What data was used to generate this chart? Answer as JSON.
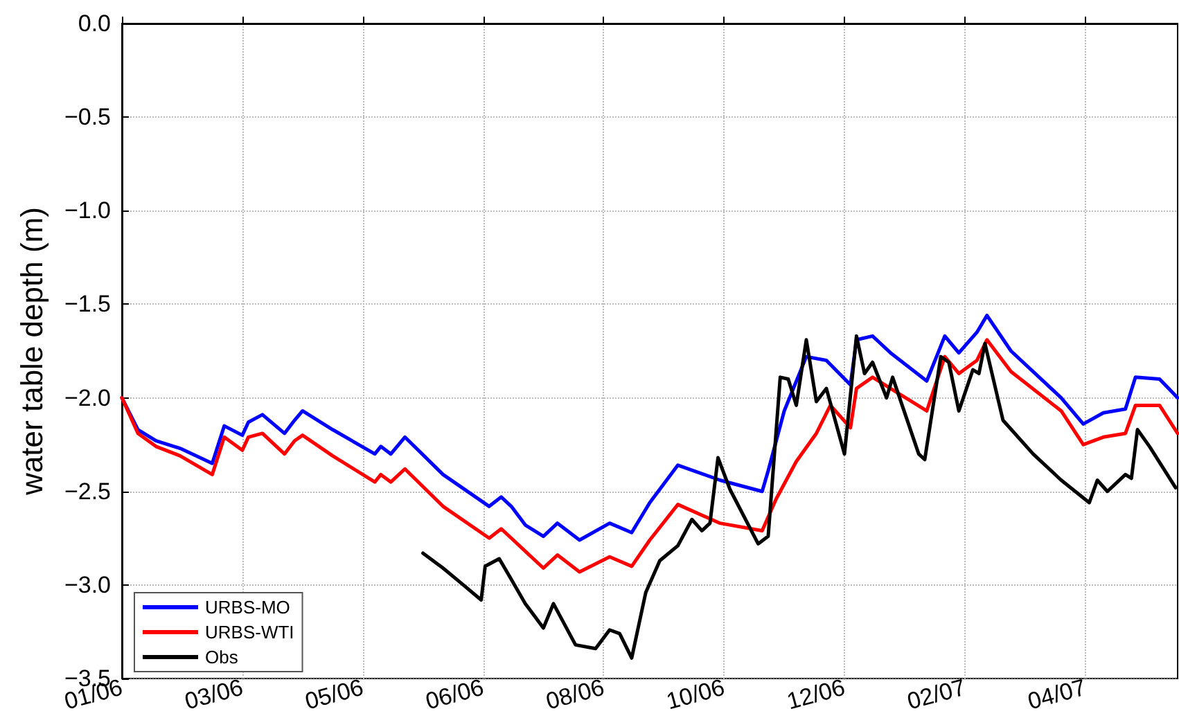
{
  "chart_data": {
    "type": "line",
    "ylabel": "water table depth (m)",
    "xlim": [
      "2006-01-01",
      "2007-06-11"
    ],
    "xticks": [
      {
        "value": "2006-01-01",
        "label": "01/06"
      },
      {
        "value": "2006-03-02",
        "label": "03/06"
      },
      {
        "value": "2006-05-01",
        "label": "05/06"
      },
      {
        "value": "2006-06-30",
        "label": "06/06"
      },
      {
        "value": "2006-08-29",
        "label": "08/06"
      },
      {
        "value": "2006-10-28",
        "label": "10/06"
      },
      {
        "value": "2006-12-27",
        "label": "12/06"
      },
      {
        "value": "2007-02-25",
        "label": "02/07"
      },
      {
        "value": "2007-04-26",
        "label": "04/07"
      }
    ],
    "ylim": [
      -3.5,
      0
    ],
    "yticks": [
      {
        "value": -3.5,
        "label": "−3.5"
      },
      {
        "value": -3,
        "label": "−3.0"
      },
      {
        "value": -2.5,
        "label": "−2.5"
      },
      {
        "value": -2,
        "label": "−2.0"
      },
      {
        "value": -1.5,
        "label": "−1.5"
      },
      {
        "value": -1,
        "label": "−1.0"
      },
      {
        "value": -0.5,
        "label": "−0.5"
      },
      {
        "value": 0,
        "label": "0.0"
      }
    ],
    "grid": true,
    "legend": "bottom left",
    "marker": "none",
    "line_style": "solid",
    "series": [
      {
        "name": "URBS-MO",
        "color": "#0000ff",
        "x": [
          "2006-01-01",
          "2006-01-09",
          "2006-01-18",
          "2006-01-30",
          "2006-02-15",
          "2006-02-21",
          "2006-03-02",
          "2006-03-05",
          "2006-03-12",
          "2006-03-23",
          "2006-03-28",
          "2006-04-01",
          "2006-04-16",
          "2006-05-07",
          "2006-05-10",
          "2006-05-15",
          "2006-05-22",
          "2006-06-10",
          "2006-07-03",
          "2006-07-09",
          "2006-07-14",
          "2006-07-21",
          "2006-07-30",
          "2006-08-06",
          "2006-08-17",
          "2006-09-01",
          "2006-09-12",
          "2006-09-21",
          "2006-10-05",
          "2006-10-26",
          "2006-11-16",
          "2006-11-19",
          "2006-11-27",
          "2006-12-08",
          "2006-12-18",
          "2006-12-30",
          "2007-01-02",
          "2007-01-10",
          "2007-01-19",
          "2007-02-06",
          "2007-02-15",
          "2007-02-22",
          "2007-03-03",
          "2007-03-08",
          "2007-03-20",
          "2007-04-14",
          "2007-04-25",
          "2007-05-05",
          "2007-05-16",
          "2007-05-21",
          "2007-06-02",
          "2007-06-11"
        ],
        "values": [
          -2.0,
          -2.17,
          -2.23,
          -2.27,
          -2.35,
          -2.15,
          -2.2,
          -2.13,
          -2.09,
          -2.19,
          -2.12,
          -2.07,
          -2.17,
          -2.3,
          -2.26,
          -2.3,
          -2.21,
          -2.41,
          -2.58,
          -2.53,
          -2.58,
          -2.68,
          -2.74,
          -2.67,
          -2.76,
          -2.67,
          -2.72,
          -2.56,
          -2.36,
          -2.44,
          -2.5,
          -2.39,
          -2.07,
          -1.78,
          -1.8,
          -1.93,
          -1.69,
          -1.67,
          -1.76,
          -1.91,
          -1.67,
          -1.76,
          -1.65,
          -1.56,
          -1.75,
          -2.0,
          -2.14,
          -2.08,
          -2.06,
          -1.89,
          -1.9,
          -2.0
        ]
      },
      {
        "name": "URBS-WTI",
        "color": "#ff0000",
        "x": [
          "2006-01-01",
          "2006-01-09",
          "2006-01-18",
          "2006-01-30",
          "2006-02-15",
          "2006-02-21",
          "2006-03-02",
          "2006-03-05",
          "2006-03-12",
          "2006-03-23",
          "2006-03-28",
          "2006-04-01",
          "2006-04-16",
          "2006-05-07",
          "2006-05-10",
          "2006-05-15",
          "2006-05-22",
          "2006-06-10",
          "2006-07-03",
          "2006-07-09",
          "2006-07-14",
          "2006-07-30",
          "2006-08-06",
          "2006-08-17",
          "2006-09-01",
          "2006-09-12",
          "2006-09-21",
          "2006-10-05",
          "2006-10-26",
          "2006-11-16",
          "2006-11-23",
          "2006-12-03",
          "2006-12-13",
          "2006-12-20",
          "2006-12-30",
          "2007-01-02",
          "2007-01-10",
          "2007-01-19",
          "2007-02-06",
          "2007-02-15",
          "2007-02-22",
          "2007-03-03",
          "2007-03-08",
          "2007-03-20",
          "2007-04-14",
          "2007-04-25",
          "2007-05-05",
          "2007-05-16",
          "2007-05-21",
          "2007-06-02",
          "2007-06-11"
        ],
        "values": [
          -2.0,
          -2.19,
          -2.26,
          -2.31,
          -2.41,
          -2.21,
          -2.28,
          -2.21,
          -2.19,
          -2.3,
          -2.23,
          -2.2,
          -2.31,
          -2.45,
          -2.41,
          -2.45,
          -2.38,
          -2.58,
          -2.75,
          -2.7,
          -2.75,
          -2.91,
          -2.84,
          -2.93,
          -2.85,
          -2.9,
          -2.76,
          -2.57,
          -2.67,
          -2.71,
          -2.54,
          -2.34,
          -2.19,
          -2.04,
          -2.16,
          -1.95,
          -1.89,
          -1.95,
          -2.07,
          -1.78,
          -1.87,
          -1.8,
          -1.69,
          -1.86,
          -2.07,
          -2.25,
          -2.21,
          -2.19,
          -2.04,
          -2.04,
          -2.19
        ]
      },
      {
        "name": "Obs",
        "color": "#000000",
        "x": [
          "2006-05-31",
          "2006-06-10",
          "2006-06-19",
          "2006-06-29",
          "2006-07-01",
          "2006-07-08",
          "2006-07-14",
          "2006-07-21",
          "2006-07-30",
          "2006-08-04",
          "2006-08-15",
          "2006-08-25",
          "2006-09-01",
          "2006-09-06",
          "2006-09-12",
          "2006-09-19",
          "2006-09-26",
          "2006-10-05",
          "2006-10-12",
          "2006-10-17",
          "2006-10-21",
          "2006-10-25",
          "2006-10-31",
          "2006-11-14",
          "2006-11-19",
          "2006-11-25",
          "2006-11-29",
          "2006-12-03",
          "2006-12-08",
          "2006-12-13",
          "2006-12-18",
          "2006-12-27",
          "2007-01-02",
          "2007-01-06",
          "2007-01-10",
          "2007-01-17",
          "2007-01-20",
          "2007-02-02",
          "2007-02-05",
          "2007-02-13",
          "2007-02-17",
          "2007-02-22",
          "2007-03-01",
          "2007-03-04",
          "2007-03-07",
          "2007-03-16",
          "2007-03-31",
          "2007-04-14",
          "2007-04-28",
          "2007-05-02",
          "2007-05-07",
          "2007-05-16",
          "2007-05-19",
          "2007-05-22",
          "2007-05-28",
          "2007-06-10"
        ],
        "values": [
          -2.83,
          -2.91,
          -2.99,
          -3.08,
          -2.9,
          -2.86,
          -2.97,
          -3.1,
          -3.23,
          -3.1,
          -3.32,
          -3.34,
          -3.24,
          -3.26,
          -3.39,
          -3.04,
          -2.87,
          -2.79,
          -2.65,
          -2.71,
          -2.67,
          -2.32,
          -2.49,
          -2.78,
          -2.74,
          -1.89,
          -1.9,
          -2.04,
          -1.69,
          -2.02,
          -1.95,
          -2.3,
          -1.67,
          -1.87,
          -1.81,
          -2.0,
          -1.89,
          -2.3,
          -2.33,
          -1.78,
          -1.81,
          -2.07,
          -1.85,
          -1.87,
          -1.71,
          -2.12,
          -2.3,
          -2.44,
          -2.56,
          -2.44,
          -2.5,
          -2.41,
          -2.43,
          -2.17,
          -2.26,
          -2.48
        ]
      }
    ]
  }
}
